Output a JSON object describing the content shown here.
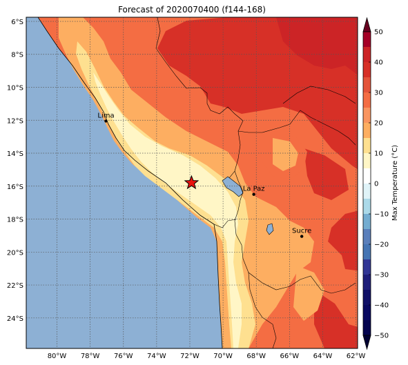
{
  "title": "Forecast of 2020070400 (f144-168)",
  "map": {
    "lon_ticks": [
      "80°W",
      "78°W",
      "76°W",
      "74°W",
      "72°W",
      "70°W",
      "68°W",
      "66°W",
      "64°W",
      "62°W"
    ],
    "lat_ticks": [
      "6°S",
      "8°S",
      "10°S",
      "12°S",
      "14°S",
      "16°S",
      "18°S",
      "20°S",
      "22°S",
      "24°S"
    ],
    "lon_values": [
      -80,
      -78,
      -76,
      -74,
      -72,
      -70,
      -68,
      -66,
      -64,
      -62
    ],
    "lat_values": [
      -6,
      -8,
      -10,
      -12,
      -14,
      -16,
      -18,
      -20,
      -22,
      -24
    ],
    "cities": [
      {
        "name": "Lima",
        "lon": -77.05,
        "lat": -12.05
      },
      {
        "name": "La Paz",
        "lon": -68.15,
        "lat": -16.5
      },
      {
        "name": "Sucre",
        "lon": -65.26,
        "lat": -19.05
      }
    ],
    "marker": {
      "type": "star",
      "lon": -71.9,
      "lat": -15.8,
      "color": "#e8130f"
    },
    "ocean_color": "#8db0d4",
    "grid": "dotted"
  },
  "colorbar": {
    "label": "Max Temperature (°C)",
    "ticks": [
      "50",
      "40",
      "30",
      "20",
      "10",
      "0",
      "−10",
      "−20",
      "−30",
      "−40",
      "−50"
    ],
    "colors_high_to_low": [
      "#a50026",
      "#cc2426",
      "#d73027",
      "#e4543a",
      "#f46d43",
      "#f99560",
      "#fdae61",
      "#fee090",
      "#fff6c6",
      "#ffffff",
      "#e0f3f8",
      "#abd9e9",
      "#74add1",
      "#5a7fbb",
      "#4575b4",
      "#313695",
      "#1e1e7a",
      "#0f0f66",
      "#080860",
      "#04044e"
    ]
  }
}
